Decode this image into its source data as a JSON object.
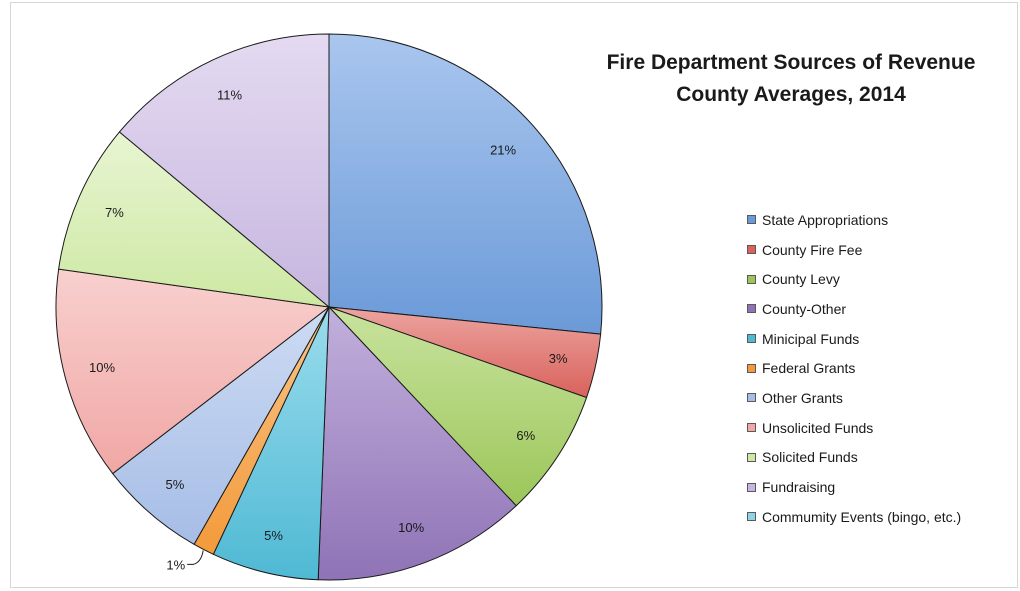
{
  "chart_data": {
    "type": "pie",
    "title": "Fire Department Sources of Revenue",
    "subtitle": "County Averages, 2014",
    "legend_position": "right",
    "slices": [
      {
        "label": "State Appropriations",
        "value": 21,
        "value_label": "21%",
        "color": "#6b9ad8",
        "color_light": "#a9c6ee"
      },
      {
        "label": "County Fire Fee",
        "value": 3,
        "value_label": "3%",
        "color": "#d9625c",
        "color_light": "#eca4a0"
      },
      {
        "label": "County Levy",
        "value": 6,
        "value_label": "6%",
        "color": "#9cc65a",
        "color_light": "#c8e39e"
      },
      {
        "label": "County-Other",
        "value": 10,
        "value_label": "10%",
        "color": "#8f73b6",
        "color_light": "#c2b0dc"
      },
      {
        "label": "Minicipal Funds",
        "value": 5,
        "value_label": "5%",
        "color": "#4fb9d4",
        "color_light": "#9adcec"
      },
      {
        "label": "Federal Grants",
        "value": 1,
        "value_label": "1%",
        "color": "#f39a3b",
        "color_light": "#f8c487"
      },
      {
        "label": "Other Grants",
        "value": 5,
        "value_label": "5%",
        "color": "#a6bde6",
        "color_light": "#cddbf3"
      },
      {
        "label": "Unsolicited Funds",
        "value": 10,
        "value_label": "10%",
        "color": "#f0a7a5",
        "color_light": "#f8d0ce"
      },
      {
        "label": "Solicited Funds",
        "value": 7,
        "value_label": "7%",
        "color": "#cde8a3",
        "color_light": "#e8f5d2"
      },
      {
        "label": "Fundraising",
        "value": 11,
        "value_label": "11%",
        "color": "#c6b6df",
        "color_light": "#e4daf1"
      },
      {
        "label": "Commumity Events (bingo, etc.)",
        "value": 0,
        "value_label": "",
        "color": "#8fd3e6",
        "color_light": "#c4e9f3"
      }
    ]
  }
}
